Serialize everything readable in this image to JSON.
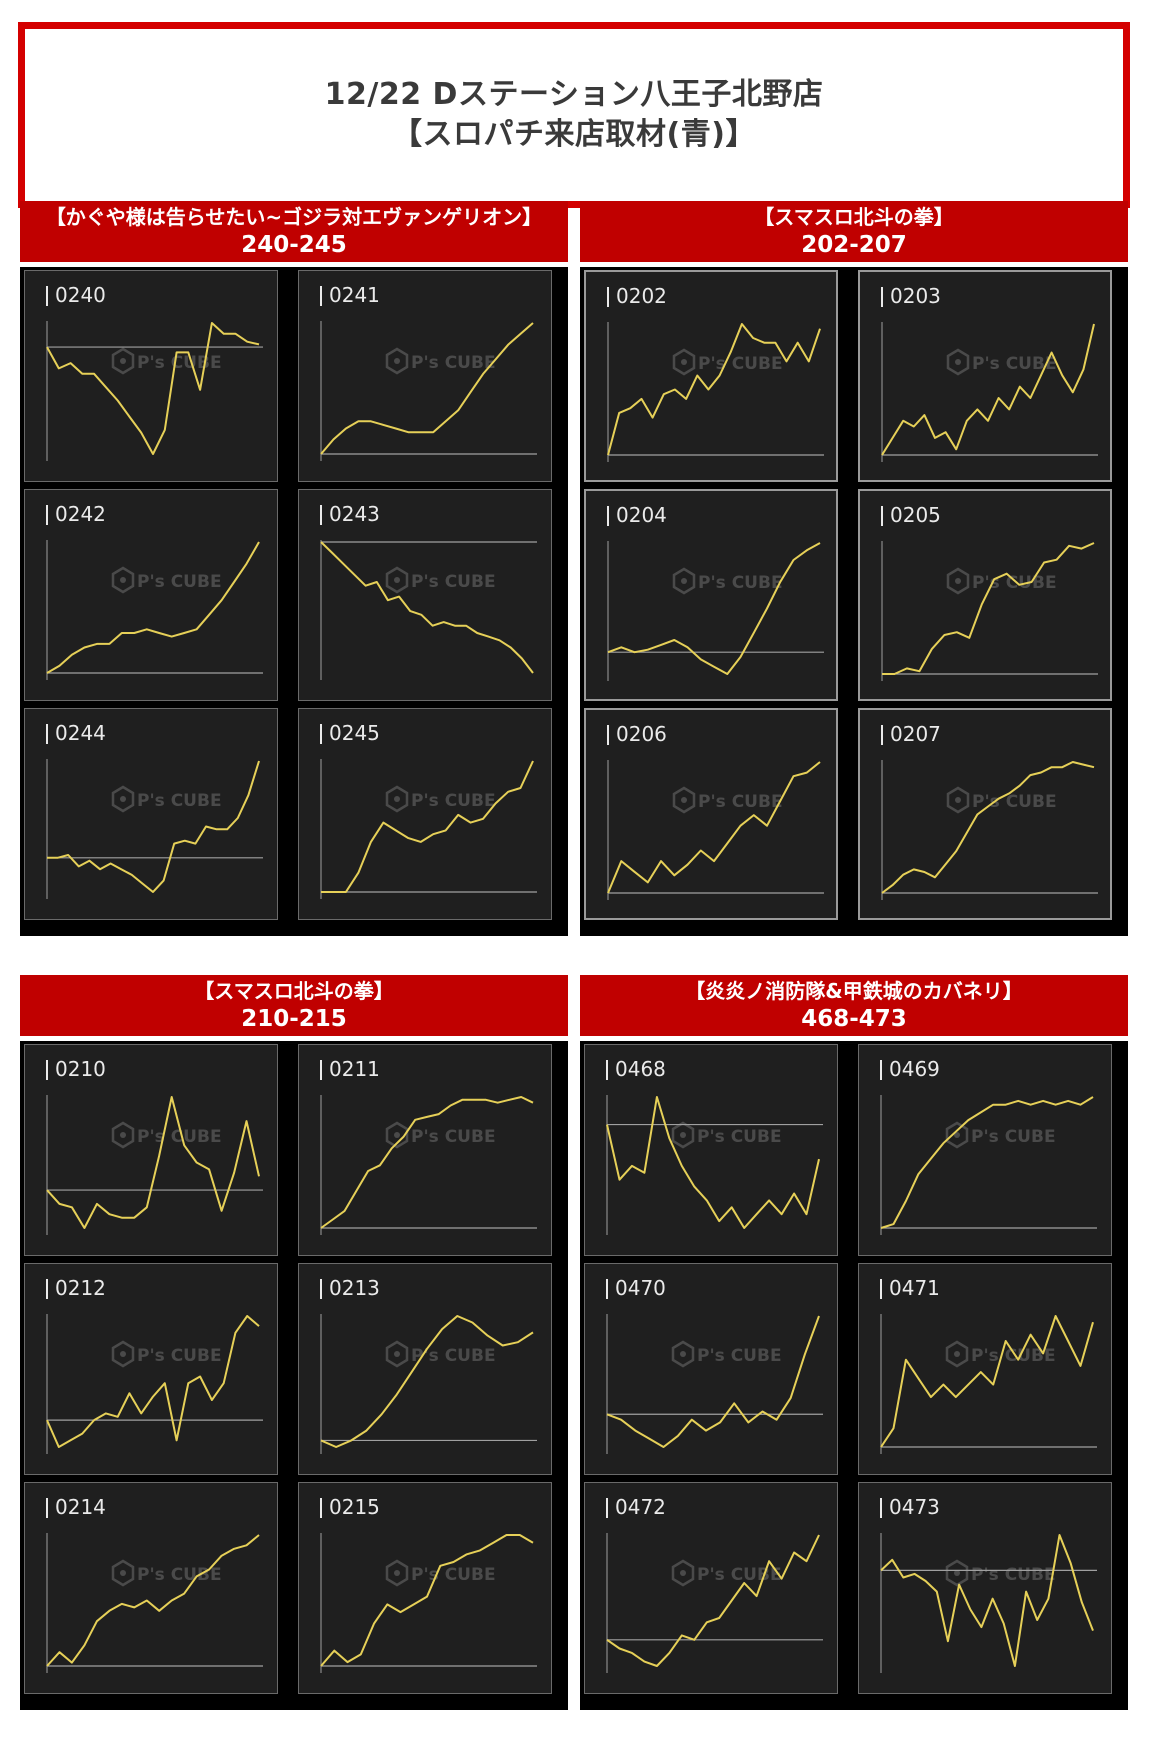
{
  "header": {
    "line1": "12/22 Dステーション八王子北野店",
    "line2": "【スロパチ来店取材(青)】"
  },
  "watermark": {
    "brand": "P's CUBE",
    "icon": "cube-logo-icon"
  },
  "colors": {
    "accent": "#c00000",
    "line": "#e6d058",
    "panel": "#1f1f1f"
  },
  "sections": [
    {
      "title": "【かぐや様は告らせたい~ゴジラ対エヴァンゲリオン】",
      "range": "240-245",
      "charts": [
        {
          "label": "0240",
          "values": [
            0,
            -0.8,
            -0.6,
            -1.0,
            -1.0,
            -1.5,
            -2.0,
            -2.6,
            -3.2,
            -4.0,
            -3.1,
            -0.2,
            -0.2,
            -1.6,
            0.9,
            0.5,
            0.5,
            0.2,
            0.1
          ]
        },
        {
          "label": "0241",
          "values": [
            0,
            0.4,
            0.7,
            0.9,
            0.9,
            0.8,
            0.7,
            0.6,
            0.6,
            0.6,
            0.9,
            1.2,
            1.7,
            2.2,
            2.6,
            3.0,
            3.3,
            3.6
          ]
        },
        {
          "label": "0242",
          "values": [
            0,
            0.2,
            0.5,
            0.7,
            0.8,
            0.8,
            1.1,
            1.1,
            1.2,
            1.1,
            1.0,
            1.1,
            1.2,
            1.6,
            2.0,
            2.5,
            3.0,
            3.6
          ]
        },
        {
          "label": "0243",
          "values": [
            0,
            -0.3,
            -0.6,
            -0.9,
            -1.2,
            -1.1,
            -1.6,
            -1.5,
            -1.9,
            -2.0,
            -2.3,
            -2.2,
            -2.3,
            -2.3,
            -2.5,
            -2.6,
            -2.7,
            -2.9,
            -3.2,
            -3.6
          ]
        },
        {
          "label": "0244",
          "values": [
            0,
            0,
            0.1,
            -0.3,
            -0.1,
            -0.4,
            -0.2,
            -0.4,
            -0.6,
            -0.9,
            -1.2,
            -0.8,
            0.5,
            0.6,
            0.5,
            1.1,
            1.0,
            1.0,
            1.4,
            2.2,
            3.4
          ]
        },
        {
          "label": "0245",
          "values": [
            0,
            0,
            0,
            0.5,
            1.3,
            1.8,
            1.6,
            1.4,
            1.3,
            1.5,
            1.6,
            2.0,
            1.8,
            1.9,
            2.3,
            2.6,
            2.7,
            3.4
          ]
        }
      ]
    },
    {
      "title": "【スマスロ北斗の拳】",
      "range": "202-207",
      "charts": [
        {
          "label": "0202",
          "values": [
            0,
            0.9,
            1.0,
            1.2,
            0.8,
            1.3,
            1.4,
            1.2,
            1.7,
            1.4,
            1.7,
            2.2,
            2.8,
            2.5,
            2.4,
            2.4,
            2.0,
            2.4,
            2.0,
            2.7
          ]
        },
        {
          "label": "0203",
          "values": [
            0,
            0.3,
            0.6,
            0.5,
            0.7,
            0.3,
            0.4,
            0.1,
            0.6,
            0.8,
            0.6,
            1.0,
            0.8,
            1.2,
            1.0,
            1.4,
            1.8,
            1.4,
            1.1,
            1.5,
            2.3
          ]
        },
        {
          "label": "0204",
          "values": [
            0,
            0.2,
            0.0,
            0.1,
            0.3,
            0.5,
            0.2,
            -0.3,
            -0.6,
            -0.9,
            -0.2,
            0.8,
            1.8,
            2.9,
            3.8,
            4.2,
            4.5
          ]
        },
        {
          "label": "0205",
          "values": [
            0,
            0,
            0.2,
            0.1,
            0.9,
            1.4,
            1.5,
            1.3,
            2.5,
            3.4,
            3.6,
            3.2,
            3.3,
            4.0,
            4.1,
            4.6,
            4.5,
            4.7
          ]
        },
        {
          "label": "0206",
          "values": [
            0,
            0.9,
            0.6,
            0.3,
            0.9,
            0.5,
            0.8,
            1.2,
            0.9,
            1.4,
            1.9,
            2.2,
            1.9,
            2.6,
            3.3,
            3.4,
            3.7
          ]
        },
        {
          "label": "0207",
          "values": [
            0,
            0.3,
            0.7,
            0.9,
            0.8,
            0.6,
            1.1,
            1.6,
            2.3,
            3.0,
            3.3,
            3.6,
            3.8,
            4.1,
            4.5,
            4.6,
            4.8,
            4.8,
            5.0,
            4.9,
            4.8
          ]
        }
      ]
    },
    {
      "title": "【スマスロ北斗の拳】",
      "range": "210-215",
      "charts": [
        {
          "label": "0210",
          "values": [
            0,
            -0.4,
            -0.5,
            -1.1,
            -0.4,
            -0.7,
            -0.8,
            -0.8,
            -0.5,
            1.0,
            2.7,
            1.3,
            0.8,
            0.6,
            -0.6,
            0.5,
            2.0,
            0.4
          ]
        },
        {
          "label": "0211",
          "values": [
            0,
            0.3,
            0.6,
            1.3,
            2.0,
            2.2,
            2.8,
            3.2,
            3.8,
            3.9,
            4.0,
            4.3,
            4.5,
            4.5,
            4.5,
            4.4,
            4.5,
            4.6,
            4.4
          ]
        },
        {
          "label": "0212",
          "values": [
            0,
            -0.8,
            -0.6,
            -0.4,
            0,
            0.2,
            0.1,
            0.8,
            0.2,
            0.7,
            1.1,
            -0.6,
            1.1,
            1.3,
            0.6,
            1.1,
            2.6,
            3.1,
            2.8
          ]
        },
        {
          "label": "0213",
          "values": [
            0,
            -0.2,
            0,
            0.3,
            0.8,
            1.4,
            2.1,
            2.8,
            3.4,
            3.8,
            3.6,
            3.2,
            2.9,
            3.0,
            3.3
          ]
        },
        {
          "label": "0214",
          "values": [
            0,
            0.4,
            0.1,
            0.6,
            1.3,
            1.6,
            1.8,
            1.7,
            1.9,
            1.6,
            1.9,
            2.1,
            2.6,
            2.8,
            3.2,
            3.4,
            3.5,
            3.8
          ]
        },
        {
          "label": "0215",
          "values": [
            0,
            0.4,
            0.1,
            0.3,
            1.1,
            1.6,
            1.4,
            1.6,
            1.8,
            2.6,
            2.7,
            2.9,
            3.0,
            3.2,
            3.4,
            3.4,
            3.2
          ]
        }
      ]
    },
    {
      "title": "【炎炎ノ消防隊&甲鉄城のカバネリ】",
      "range": "468-473",
      "charts": [
        {
          "label": "0468",
          "values": [
            0,
            -0.8,
            -0.6,
            -0.7,
            0.4,
            -0.2,
            -0.6,
            -0.9,
            -1.1,
            -1.4,
            -1.2,
            -1.5,
            -1.3,
            -1.1,
            -1.3,
            -1.0,
            -1.3,
            -0.5
          ]
        },
        {
          "label": "0469",
          "values": [
            0,
            0.1,
            0.7,
            1.4,
            1.8,
            2.2,
            2.5,
            2.8,
            3.0,
            3.2,
            3.2,
            3.3,
            3.2,
            3.3,
            3.2,
            3.3,
            3.2,
            3.4
          ]
        },
        {
          "label": "0470",
          "values": [
            0,
            -0.2,
            -0.6,
            -0.9,
            -1.2,
            -0.8,
            -0.2,
            -0.6,
            -0.3,
            0.4,
            -0.3,
            0.1,
            -0.2,
            0.6,
            2.2,
            3.6
          ]
        },
        {
          "label": "0471",
          "values": [
            0,
            0.3,
            1.4,
            1.1,
            0.8,
            1.0,
            0.8,
            1.0,
            1.2,
            1.0,
            1.7,
            1.4,
            1.8,
            1.5,
            2.1,
            1.7,
            1.3,
            2.0
          ]
        },
        {
          "label": "0472",
          "values": [
            0,
            -0.2,
            -0.3,
            -0.5,
            -0.6,
            -0.3,
            0.1,
            0.0,
            0.4,
            0.5,
            0.9,
            1.3,
            1.0,
            1.8,
            1.4,
            2.0,
            1.8,
            2.4
          ]
        },
        {
          "label": "0473",
          "values": [
            0,
            0.3,
            -0.2,
            -0.1,
            -0.3,
            -0.6,
            -2.0,
            -0.4,
            -1.1,
            -1.6,
            -0.8,
            -1.5,
            -2.7,
            -0.6,
            -1.4,
            -0.8,
            1.0,
            0.2,
            -0.9,
            -1.7
          ]
        }
      ]
    }
  ]
}
